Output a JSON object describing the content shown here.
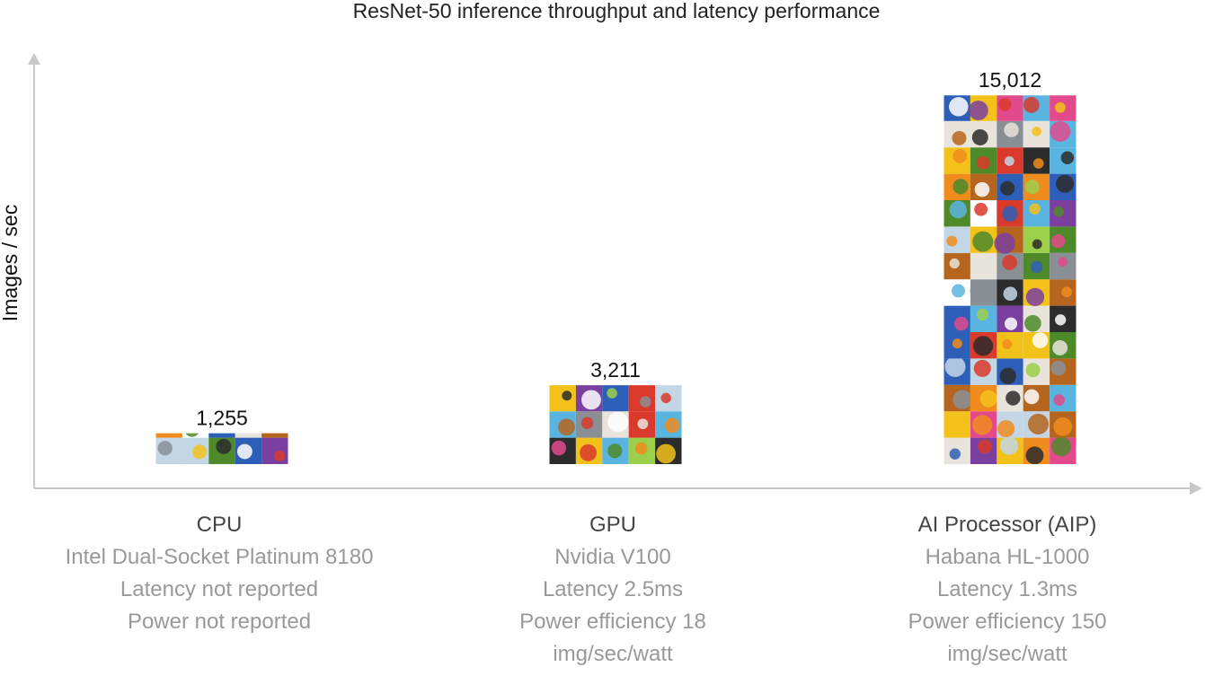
{
  "chart_data": {
    "type": "bar",
    "title": "ResNet-50 inference throughput and latency performance",
    "ylabel": "Images / sec",
    "xlabel": "",
    "ylim": [
      0,
      16700
    ],
    "grid": false,
    "legend": "none",
    "bar_fill": "image mosaic of flower and object photos",
    "categories": [
      "CPU",
      "GPU",
      "AI Processor (AIP)"
    ],
    "values": [
      1255,
      3211,
      15012
    ],
    "value_labels": [
      "1,255",
      "3,211",
      "15,012"
    ],
    "category_details": [
      [
        "Intel Dual-Socket Platinum 8180",
        "Latency not reported",
        "Power not reported"
      ],
      [
        "Nvidia V100",
        "Latency 2.5ms",
        "Power efficiency 18",
        "img/sec/watt"
      ],
      [
        "Habana HL-1000",
        "Latency 1.3ms",
        "Power efficiency 150",
        "img/sec/watt"
      ]
    ]
  },
  "colors": {
    "axis": "#c8c8c8",
    "title_text": "#222222",
    "category_text": "#444444",
    "detail_text": "#999999",
    "mosaic_palette": [
      "#d93a2b",
      "#f2c21b",
      "#7b3fa0",
      "#2e5fb8",
      "#4f8a2a",
      "#e8e4dc",
      "#f08c1e",
      "#c2d6e6",
      "#8a8f96",
      "#e24a8c",
      "#ffffff",
      "#2c2c2c",
      "#9ccf4a",
      "#b5651d",
      "#5ab4e0"
    ]
  }
}
